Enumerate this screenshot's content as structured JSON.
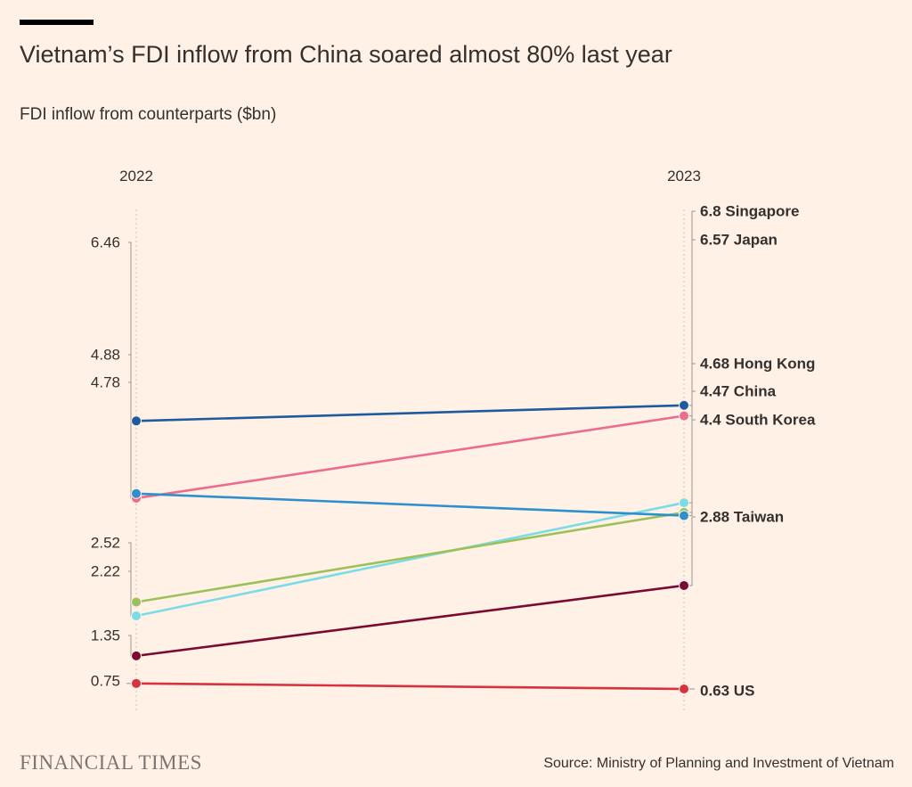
{
  "header": {
    "title": "Vietnam’s FDI inflow from China soared almost 80% last year",
    "subtitle": "FDI inflow from counterparts ($bn)"
  },
  "footer": {
    "brand": "FINANCIAL TIMES",
    "source": "Source: Ministry of Planning and Investment of Vietnam"
  },
  "chart_data": {
    "type": "slope",
    "title": "Vietnam’s FDI inflow from China soared almost 80% last year",
    "ylabel": "FDI inflow from counterparts ($bn)",
    "x": [
      "2022",
      "2023"
    ],
    "series": [
      {
        "name": "Singapore",
        "values": [
          6.46,
          6.8
        ],
        "color": "#1D5A9E",
        "label_2022": "6.46",
        "label_2023": "6.8"
      },
      {
        "name": "Japan",
        "values": [
          4.78,
          6.57
        ],
        "color": "#EB6C8E",
        "label_2022": "4.78",
        "label_2023": "6.57"
      },
      {
        "name": "Hong Kong",
        "values": [
          2.22,
          4.68
        ],
        "color": "#79DCE6",
        "label_2022": "2.22",
        "label_2023": "4.68"
      },
      {
        "name": "China",
        "values": [
          2.52,
          4.47
        ],
        "color": "#9DC15A",
        "label_2022": "2.52",
        "label_2023": "4.47"
      },
      {
        "name": "South Korea",
        "values": [
          4.88,
          4.4
        ],
        "color": "#2E8FCF",
        "label_2022": "4.88",
        "label_2023": "4.4"
      },
      {
        "name": "Taiwan",
        "values": [
          1.35,
          2.88
        ],
        "color": "#7A0A33",
        "label_2022": "1.35",
        "label_2023": "2.88"
      },
      {
        "name": "US",
        "values": [
          0.75,
          0.63
        ],
        "color": "#D6333F",
        "label_2022": "0.75",
        "label_2023": "0.63"
      }
    ]
  }
}
